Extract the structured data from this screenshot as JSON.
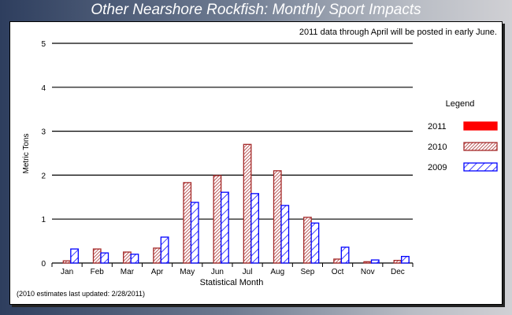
{
  "title": "Other Nearshore Rockfish: Monthly Sport Impacts",
  "chart_data": {
    "type": "bar",
    "title": "Other Nearshore Rockfish: Monthly Sport Impacts",
    "note": "2011 data through April will be posted in early June.",
    "footnote": "(2010 estimates last updated: 2/28/2011)",
    "xlabel": "Statistical Month",
    "ylabel": "Metric Tons",
    "ylim": [
      0,
      5
    ],
    "yticks": [
      "0",
      "1",
      "2",
      "3",
      "4",
      "5"
    ],
    "grid": true,
    "legend_title": "Legend",
    "legend_placement": "right",
    "categories": [
      "Jan",
      "Feb",
      "Mar",
      "Apr",
      "May",
      "Jun",
      "Jul",
      "Aug",
      "Sep",
      "Oct",
      "Nov",
      "Dec"
    ],
    "series": [
      {
        "name": "2011",
        "color": "#ff0000",
        "pattern": "solid",
        "values": [
          0,
          0,
          0,
          0,
          0,
          0,
          0,
          0,
          0,
          0,
          0,
          0
        ]
      },
      {
        "name": "2010",
        "color": "#a52a2a",
        "pattern": "hatch-dense",
        "values": [
          0.05,
          0.32,
          0.25,
          0.34,
          1.83,
          1.99,
          2.7,
          2.1,
          1.04,
          0.09,
          0.03,
          0.06
        ]
      },
      {
        "name": "2009",
        "color": "#0000ff",
        "pattern": "hatch-wide",
        "values": [
          0.32,
          0.23,
          0.2,
          0.59,
          1.38,
          1.61,
          1.58,
          1.31,
          0.91,
          0.36,
          0.07,
          0.15
        ]
      }
    ]
  }
}
